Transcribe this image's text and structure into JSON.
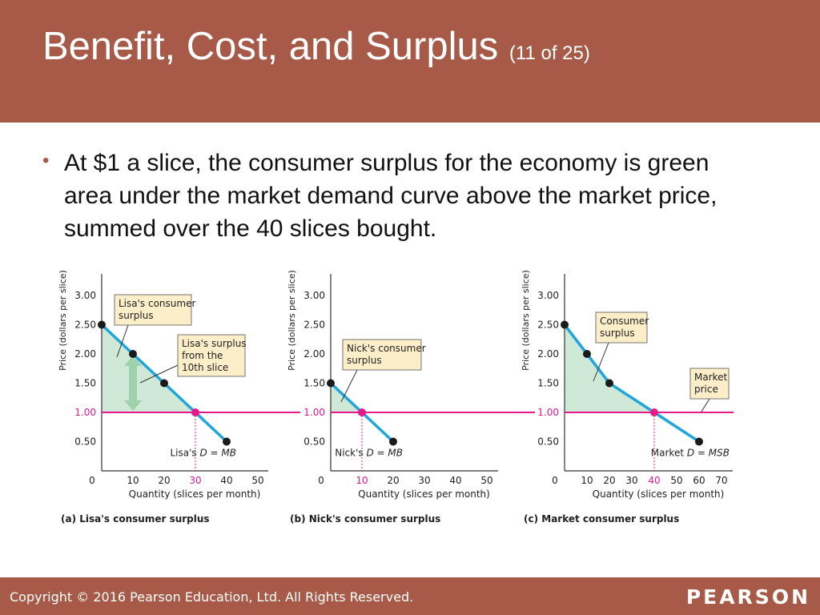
{
  "header": {
    "title": "Benefit, Cost, and Surplus",
    "counter": "(11 of 25)"
  },
  "bullet": "At $1 a slice, the consumer surplus for the economy is green area under the market demand curve above the market price, summed over the 40 slices bought.",
  "footer": {
    "copyright": "Copyright © 2016 Pearson Education, Ltd. All Rights Reserved.",
    "brand": "PEARSON"
  },
  "colors": {
    "header_bg": "#a65a47",
    "demand_line": "#1fa6dc",
    "price_line": "#e5198a",
    "surplus_fill": "#cfe9d6",
    "arrow_fill": "#9fd1ad",
    "callout_fill": "#fbeec9",
    "point": "#1a1a1a"
  },
  "chart_data": [
    {
      "type": "line",
      "id": "a",
      "caption": "(a) Lisa's consumer surplus",
      "xlabel": "Quantity (slices per month)",
      "ylabel": "Price (dollars per slice)",
      "xlim": [
        0,
        50
      ],
      "ylim": [
        0,
        3.25
      ],
      "xticks": [
        "0",
        "10",
        "20",
        "30",
        "40",
        "50"
      ],
      "highlight_xtick": "30",
      "yticks": [
        "0.50",
        "1.00",
        "1.50",
        "2.00",
        "2.50",
        "3.00"
      ],
      "highlight_ytick": "1.00",
      "demand": [
        [
          0,
          2.5
        ],
        [
          10,
          2.0
        ],
        [
          20,
          1.5
        ],
        [
          30,
          1.0
        ],
        [
          40,
          0.5
        ]
      ],
      "points": [
        [
          0,
          2.5
        ],
        [
          10,
          2.0
        ],
        [
          20,
          1.5
        ],
        [
          40,
          0.5
        ]
      ],
      "price": 1.0,
      "equilibrium": [
        30,
        1.0
      ],
      "curve_label_name": "Lisa's",
      "curve_label_formula": "D = MB",
      "callouts": [
        {
          "lines": [
            "Lisa's consumer",
            "surplus"
          ]
        },
        {
          "lines": [
            "Lisa's surplus",
            "from the",
            "10th slice"
          ]
        }
      ],
      "arrow_range": [
        1.0,
        2.0
      ],
      "arrow_at": 10
    },
    {
      "type": "line",
      "id": "b",
      "caption": "(b) Nick's consumer surplus",
      "xlabel": "Quantity (slices per month)",
      "ylabel": "Price (dollars per slice)",
      "xlim": [
        0,
        50
      ],
      "ylim": [
        0,
        3.25
      ],
      "xticks": [
        "0",
        "10",
        "20",
        "30",
        "40",
        "50"
      ],
      "highlight_xtick": "10",
      "yticks": [
        "0.50",
        "1.00",
        "1.50",
        "2.00",
        "2.50",
        "3.00"
      ],
      "highlight_ytick": "1.00",
      "demand": [
        [
          0,
          1.5
        ],
        [
          10,
          1.0
        ],
        [
          20,
          0.5
        ]
      ],
      "points": [
        [
          0,
          1.5
        ],
        [
          20,
          0.5
        ]
      ],
      "price": 1.0,
      "equilibrium": [
        10,
        1.0
      ],
      "curve_label_name": "Nick's",
      "curve_label_formula": "D = MB",
      "callouts": [
        {
          "lines": [
            "Nick's consumer",
            "surplus"
          ]
        }
      ]
    },
    {
      "type": "line",
      "id": "c",
      "caption": "(c) Market consumer surplus",
      "xlabel": "Quantity (slices per month)",
      "ylabel": "Price (dollars per slice)",
      "xlim": [
        0,
        70
      ],
      "ylim": [
        0,
        3.25
      ],
      "xticks": [
        "0",
        "10",
        "20",
        "30",
        "40",
        "50",
        "60",
        "70"
      ],
      "highlight_xtick": "40",
      "yticks": [
        "0.50",
        "1.00",
        "1.50",
        "2.00",
        "2.50",
        "3.00"
      ],
      "highlight_ytick": "1.00",
      "demand": [
        [
          0,
          2.5
        ],
        [
          10,
          2.0
        ],
        [
          20,
          1.5
        ],
        [
          40,
          1.0
        ],
        [
          60,
          0.5
        ]
      ],
      "points": [
        [
          0,
          2.5
        ],
        [
          10,
          2.0
        ],
        [
          20,
          1.5
        ],
        [
          60,
          0.5
        ]
      ],
      "price": 1.0,
      "equilibrium": [
        40,
        1.0
      ],
      "curve_label_name": "Market",
      "curve_label_formula": "D = MSB",
      "callouts": [
        {
          "lines": [
            "Consumer",
            "surplus"
          ]
        },
        {
          "lines": [
            "Market",
            "price"
          ]
        }
      ]
    }
  ]
}
